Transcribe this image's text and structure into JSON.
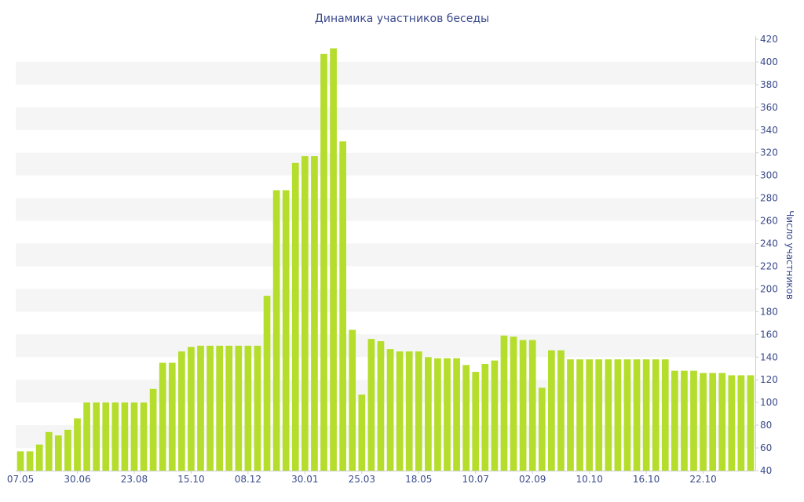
{
  "chart_data": {
    "type": "bar",
    "title": "Динамика участников беседы",
    "xlabel": "",
    "ylabel": "Число участников",
    "ylim": [
      40,
      420
    ],
    "y_ticks": [
      40,
      60,
      80,
      100,
      120,
      140,
      160,
      180,
      200,
      220,
      240,
      260,
      280,
      300,
      320,
      340,
      360,
      380,
      400,
      420
    ],
    "y_axis_side": "right",
    "grid": "alternating horizontal bands",
    "bar_color": "#b5dd2c",
    "band_color": "#f5f5f5",
    "text_color": "#3b4a8c",
    "x_tick_labels": [
      {
        "index": 0,
        "label": "07.05"
      },
      {
        "index": 6,
        "label": "30.06"
      },
      {
        "index": 12,
        "label": "23.08"
      },
      {
        "index": 18,
        "label": "15.10"
      },
      {
        "index": 24,
        "label": "08.12"
      },
      {
        "index": 30,
        "label": "30.01"
      },
      {
        "index": 36,
        "label": "25.03"
      },
      {
        "index": 42,
        "label": "18.05"
      },
      {
        "index": 48,
        "label": "10.07"
      },
      {
        "index": 54,
        "label": "02.09"
      },
      {
        "index": 60,
        "label": "10.10"
      },
      {
        "index": 66,
        "label": "16.10"
      },
      {
        "index": 72,
        "label": "22.10"
      }
    ],
    "values": [
      57,
      57,
      63,
      74,
      71,
      76,
      86,
      100,
      100,
      100,
      100,
      100,
      100,
      100,
      112,
      135,
      135,
      145,
      149,
      150,
      150,
      150,
      150,
      150,
      150,
      150,
      194,
      287,
      287,
      311,
      317,
      317,
      407,
      412,
      330,
      164,
      107,
      156,
      154,
      147,
      145,
      145,
      145,
      140,
      139,
      139,
      139,
      133,
      127,
      134,
      137,
      159,
      158,
      155,
      155,
      113,
      146,
      146,
      138,
      138,
      138,
      138,
      138,
      138,
      138,
      138,
      138,
      138,
      138,
      128,
      128,
      128,
      126,
      126,
      126,
      124,
      124,
      124
    ]
  }
}
